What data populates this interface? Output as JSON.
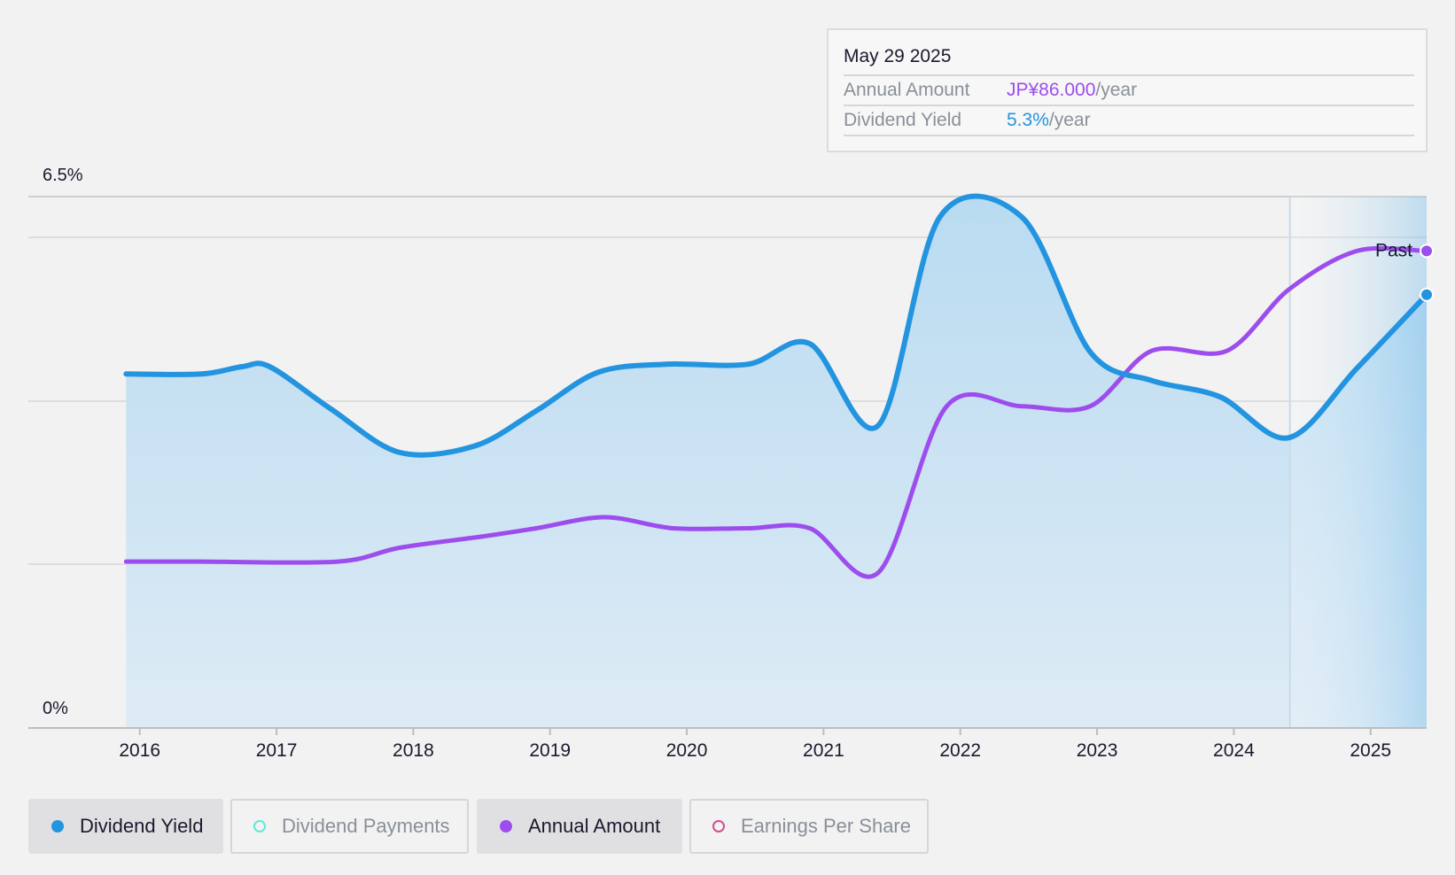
{
  "colors": {
    "dividend_yield": "#2394df",
    "annual_amount": "#9d4ded",
    "dividend_payments": "#64e6d9",
    "earnings_per_share": "#d0508c",
    "area_fill": "#c4dff1",
    "past_shade": "#a8d1ee"
  },
  "tooltip": {
    "date": "May 29 2025",
    "annual_label": "Annual Amount",
    "annual_value": "JP¥86.000",
    "annual_unit": "/year",
    "yield_label": "Dividend Yield",
    "yield_value": "5.3%",
    "yield_unit": "/year"
  },
  "legend": [
    {
      "label": "Dividend Yield",
      "active": true,
      "icon": "filled-dot-icon"
    },
    {
      "label": "Dividend Payments",
      "active": false,
      "icon": "hollow-dot-icon"
    },
    {
      "label": "Annual Amount",
      "active": true,
      "icon": "filled-dot-icon"
    },
    {
      "label": "Earnings Per Share",
      "active": false,
      "icon": "hollow-dot-icon"
    }
  ],
  "chart_data": {
    "type": "area",
    "y_top_label": "6.5%",
    "y_bottom_label": "0%",
    "past_label": "Past",
    "ylim": [
      0,
      6.5
    ],
    "xlim": [
      2015.6,
      2025.41
    ],
    "past_start": 2024.41,
    "x_ticks": [
      "2016",
      "2017",
      "2018",
      "2019",
      "2020",
      "2021",
      "2022",
      "2023",
      "2024",
      "2025"
    ],
    "grid": true,
    "series": [
      {
        "name": "Dividend Yield",
        "axis": "percent",
        "points": [
          [
            2015.9,
            4.33
          ],
          [
            2016.45,
            4.33
          ],
          [
            2016.75,
            4.42
          ],
          [
            2016.95,
            4.42
          ],
          [
            2017.4,
            3.9
          ],
          [
            2017.9,
            3.37
          ],
          [
            2018.45,
            3.45
          ],
          [
            2018.9,
            3.88
          ],
          [
            2019.35,
            4.35
          ],
          [
            2019.85,
            4.45
          ],
          [
            2020.45,
            4.45
          ],
          [
            2020.9,
            4.7
          ],
          [
            2021.4,
            3.7
          ],
          [
            2021.85,
            6.25
          ],
          [
            2022.45,
            6.25
          ],
          [
            2022.95,
            4.6
          ],
          [
            2023.4,
            4.25
          ],
          [
            2023.9,
            4.05
          ],
          [
            2024.4,
            3.55
          ],
          [
            2024.9,
            4.4
          ],
          [
            2025.41,
            5.3
          ]
        ]
      },
      {
        "name": "Annual Amount",
        "axis": "amount",
        "points": [
          [
            2015.9,
            30
          ],
          [
            2016.45,
            30
          ],
          [
            2017.45,
            30
          ],
          [
            2017.9,
            32.5
          ],
          [
            2018.5,
            34.5
          ],
          [
            2018.9,
            36
          ],
          [
            2019.4,
            38
          ],
          [
            2019.9,
            36
          ],
          [
            2020.45,
            36
          ],
          [
            2020.9,
            36
          ],
          [
            2021.4,
            28
          ],
          [
            2021.9,
            58
          ],
          [
            2022.45,
            58
          ],
          [
            2022.95,
            58
          ],
          [
            2023.4,
            68
          ],
          [
            2023.95,
            68
          ],
          [
            2024.4,
            79
          ],
          [
            2024.9,
            86
          ],
          [
            2025.41,
            86
          ]
        ]
      }
    ],
    "amount_axis_range": [
      0,
      95.8
    ]
  }
}
